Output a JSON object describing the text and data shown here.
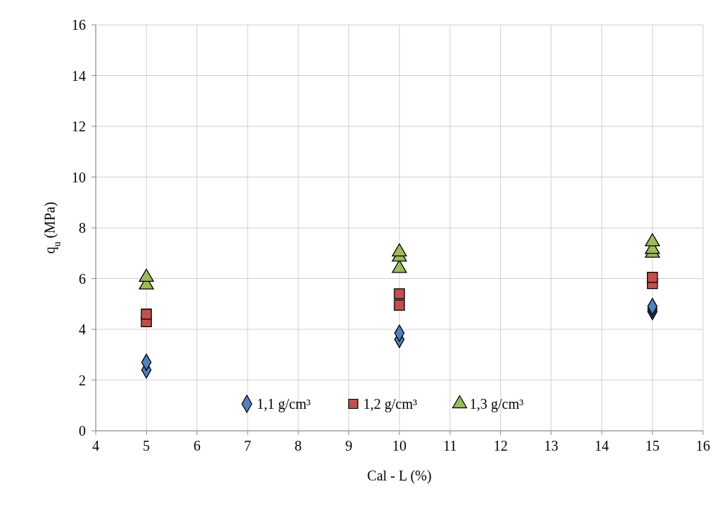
{
  "chart_data": {
    "type": "scatter",
    "xlabel": "Cal - L (%)",
    "ylabel": "q$_{u}$ (MPa)",
    "xlim": [
      4,
      16
    ],
    "xticks": [
      4,
      5,
      6,
      7,
      8,
      9,
      10,
      11,
      12,
      13,
      14,
      15,
      16
    ],
    "ylim": [
      0,
      16
    ],
    "yticks": [
      0,
      2,
      4,
      6,
      8,
      10,
      12,
      14,
      16
    ],
    "grid": true,
    "legend": "bottom",
    "series": [
      {
        "name": "1,1 g/cm³",
        "color": "#4f81bd",
        "marker": "diamond",
        "x": [
          5,
          5,
          10,
          10,
          15,
          15,
          15
        ],
        "values": [
          2.4,
          2.7,
          3.6,
          3.85,
          4.7,
          4.8,
          4.9
        ]
      },
      {
        "name": "1,2 g/cm³",
        "color": "#c0504d",
        "marker": "square",
        "x": [
          5,
          5,
          10,
          10,
          15,
          15
        ],
        "values": [
          4.3,
          4.6,
          4.95,
          5.4,
          5.8,
          6.05
        ]
      },
      {
        "name": "1,3 g/cm³",
        "color": "#9bbb59",
        "marker": "triangle",
        "x": [
          5,
          5,
          10,
          10,
          10,
          15,
          15,
          15
        ],
        "values": [
          5.75,
          6.05,
          6.4,
          6.85,
          7.05,
          7.0,
          7.15,
          7.45
        ]
      }
    ]
  }
}
